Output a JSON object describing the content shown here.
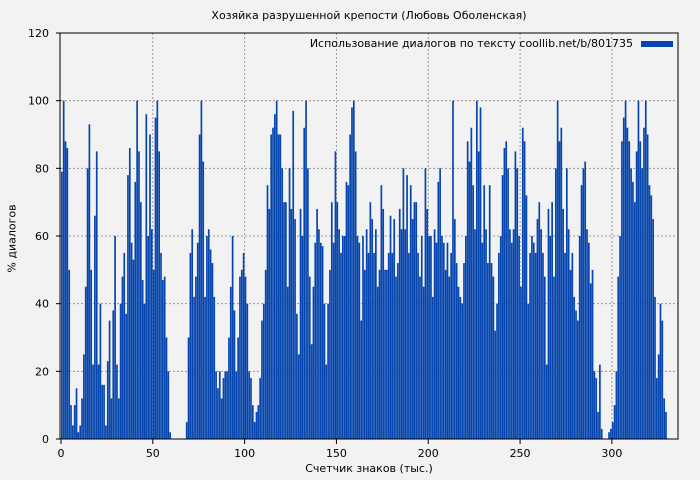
{
  "chart_data": {
    "type": "bar",
    "title": "Хозяйка разрушенной крепости (Любовь Оболенская)",
    "xlabel": "Счетчик знаков (тыс.)",
    "ylabel": "% диалогов",
    "xlim": [
      0,
      336
    ],
    "ylim": [
      0,
      120
    ],
    "xticks": [
      0,
      50,
      100,
      150,
      200,
      250,
      300
    ],
    "yticks": [
      0,
      20,
      40,
      60,
      80,
      100,
      120
    ],
    "grid": true,
    "legend_position": "top-right",
    "series": [
      {
        "name": "Использование диалогов по тексту coollib.net/b/801735",
        "color": "#0645ad",
        "x_step": 1,
        "values": [
          79,
          100,
          88,
          86,
          50,
          10,
          4,
          10,
          15,
          2,
          4,
          12,
          25,
          45,
          80,
          93,
          50,
          22,
          66,
          85,
          22,
          40,
          16,
          16,
          4,
          23,
          35,
          12,
          38,
          60,
          22,
          12,
          40,
          48,
          55,
          37,
          78,
          86,
          58,
          53,
          76,
          100,
          85,
          70,
          47,
          40,
          96,
          60,
          90,
          62,
          50,
          95,
          100,
          85,
          55,
          47,
          48,
          30,
          20,
          2,
          0,
          0,
          0,
          0,
          0,
          0,
          0,
          0,
          5,
          30,
          55,
          62,
          42,
          48,
          58,
          90,
          100,
          82,
          42,
          60,
          62,
          56,
          52,
          42,
          20,
          15,
          20,
          12,
          18,
          20,
          20,
          30,
          45,
          60,
          38,
          20,
          30,
          48,
          50,
          55,
          48,
          40,
          20,
          18,
          10,
          5,
          8,
          10,
          18,
          35,
          40,
          50,
          75,
          68,
          90,
          92,
          96,
          100,
          90,
          90,
          80,
          70,
          70,
          45,
          80,
          68,
          97,
          65,
          37,
          25,
          68,
          60,
          92,
          100,
          80,
          48,
          28,
          45,
          58,
          68,
          62,
          58,
          57,
          40,
          22,
          40,
          50,
          70,
          58,
          85,
          70,
          62,
          55,
          60,
          60,
          76,
          75,
          90,
          98,
          100,
          85,
          60,
          58,
          35,
          60,
          50,
          62,
          55,
          70,
          65,
          55,
          62,
          45,
          50,
          75,
          68,
          50,
          50,
          55,
          66,
          55,
          65,
          48,
          52,
          68,
          62,
          80,
          62,
          78,
          55,
          75,
          65,
          70,
          70,
          55,
          48,
          60,
          45,
          80,
          68,
          60,
          60,
          42,
          62,
          58,
          76,
          80,
          60,
          58,
          50,
          58,
          48,
          55,
          100,
          65,
          52,
          45,
          42,
          40,
          52,
          60,
          88,
          82,
          92,
          75,
          62,
          100,
          85,
          98,
          58,
          75,
          62,
          52,
          75,
          52,
          48,
          32,
          40,
          55,
          60,
          78,
          86,
          88,
          80,
          62,
          58,
          62,
          85,
          80,
          60,
          45,
          92,
          88,
          72,
          40,
          55,
          60,
          58,
          55,
          65,
          70,
          62,
          55,
          48,
          22,
          68,
          60,
          70,
          48,
          80,
          100,
          88,
          92,
          68,
          55,
          80,
          62,
          50,
          55,
          42,
          38,
          35,
          60,
          75,
          80,
          82,
          62,
          58,
          46,
          50,
          20,
          18,
          8,
          22,
          3,
          0,
          0,
          0,
          2,
          3,
          5,
          10,
          20,
          48,
          60,
          88,
          95,
          100,
          92,
          88,
          80,
          76,
          70,
          85,
          100,
          88,
          80,
          92,
          100,
          90,
          75,
          72,
          65,
          42,
          18,
          25,
          40,
          35,
          12,
          8
        ]
      }
    ]
  },
  "header": {
    "title": "Хозяйка разрушенной крепости (Любовь Оболенская)"
  },
  "legend": {
    "label": "Использование диалогов по тексту coollib.net/b/801735"
  },
  "axes": {
    "x_label": "Счетчик знаков (тыс.)",
    "y_label": "% диалогов"
  }
}
